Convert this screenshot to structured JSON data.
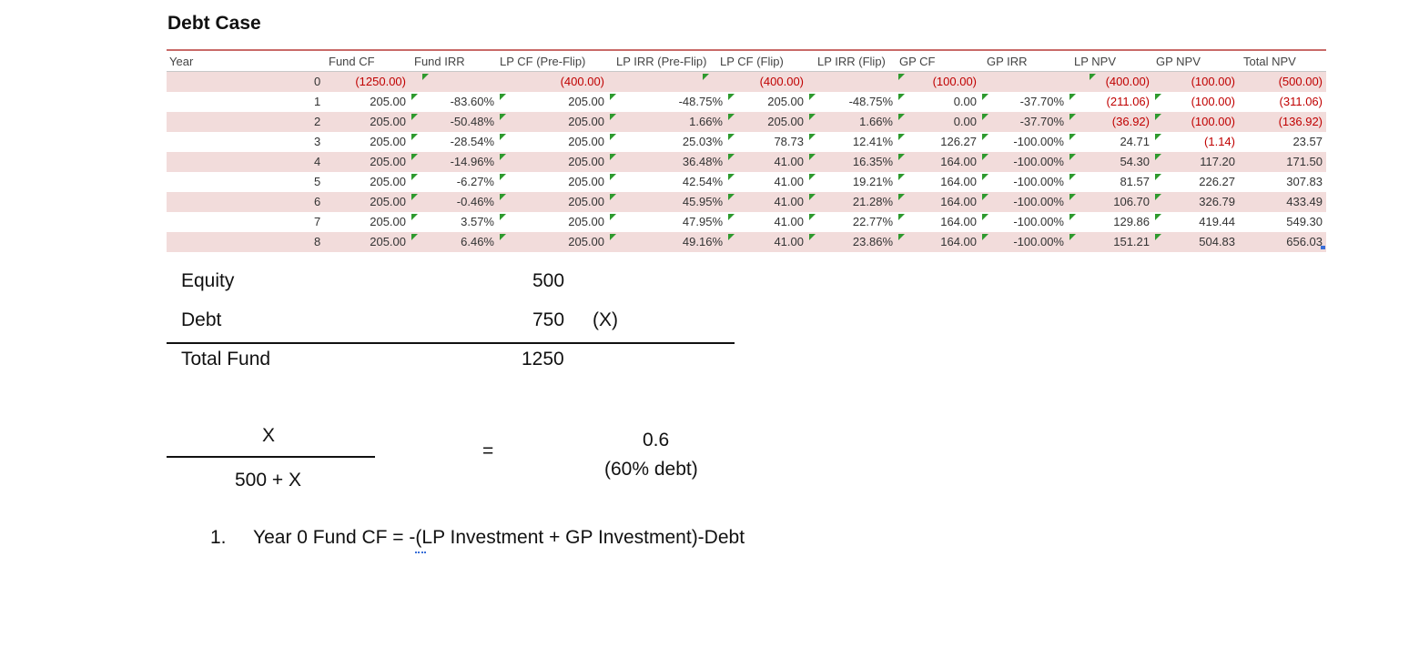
{
  "title": "Debt Case",
  "table": {
    "headers": [
      "Year",
      "Fund CF",
      "Fund IRR",
      "LP CF (Pre-Flip)",
      "LP IRR (Pre-Flip)",
      "LP CF (Flip)",
      "LP IRR (Flip)",
      "GP CF",
      "GP IRR",
      "LP NPV",
      "GP NPV",
      "Total NPV"
    ],
    "rows": [
      [
        "0",
        "(1250.00)",
        "",
        "(400.00)",
        "",
        "(400.00)",
        "",
        "(100.00)",
        "",
        "(400.00)",
        "(100.00)",
        "(500.00)"
      ],
      [
        "1",
        "205.00",
        "-83.60%",
        "205.00",
        "-48.75%",
        "205.00",
        "-48.75%",
        "0.00",
        "-37.70%",
        "(211.06)",
        "(100.00)",
        "(311.06)"
      ],
      [
        "2",
        "205.00",
        "-50.48%",
        "205.00",
        "1.66%",
        "205.00",
        "1.66%",
        "0.00",
        "-37.70%",
        "(36.92)",
        "(100.00)",
        "(136.92)"
      ],
      [
        "3",
        "205.00",
        "-28.54%",
        "205.00",
        "25.03%",
        "78.73",
        "12.41%",
        "126.27",
        "-100.00%",
        "24.71",
        "(1.14)",
        "23.57"
      ],
      [
        "4",
        "205.00",
        "-14.96%",
        "205.00",
        "36.48%",
        "41.00",
        "16.35%",
        "164.00",
        "-100.00%",
        "54.30",
        "117.20",
        "171.50"
      ],
      [
        "5",
        "205.00",
        "-6.27%",
        "205.00",
        "42.54%",
        "41.00",
        "19.21%",
        "164.00",
        "-100.00%",
        "81.57",
        "226.27",
        "307.83"
      ],
      [
        "6",
        "205.00",
        "-0.46%",
        "205.00",
        "45.95%",
        "41.00",
        "21.28%",
        "164.00",
        "-100.00%",
        "106.70",
        "326.79",
        "433.49"
      ],
      [
        "7",
        "205.00",
        "3.57%",
        "205.00",
        "47.95%",
        "41.00",
        "22.77%",
        "164.00",
        "-100.00%",
        "129.86",
        "419.44",
        "549.30"
      ],
      [
        "8",
        "205.00",
        "6.46%",
        "205.00",
        "49.16%",
        "41.00",
        "23.86%",
        "164.00",
        "-100.00%",
        "151.21",
        "504.83",
        "656.03"
      ]
    ]
  },
  "capital": {
    "equity_label": "Equity",
    "equity_value": "500",
    "debt_label": "Debt",
    "debt_value": "750",
    "debt_note": "(X)",
    "total_label": "Total Fund",
    "total_value": "1250"
  },
  "formula": {
    "numerator": "X",
    "denominator": "500 + X",
    "equals": "=",
    "result": "0.6",
    "result_note": "(60% debt)"
  },
  "notes": [
    {
      "number": "1.",
      "text": "Year 0 Fund CF = -(LP Investment + GP Investment)-Debt"
    }
  ],
  "colors": {
    "accent_line": "#c0504d",
    "row_shade": "#f2dcdb",
    "negative_text": "#c00000",
    "error_flag": "#2e9a2e"
  }
}
